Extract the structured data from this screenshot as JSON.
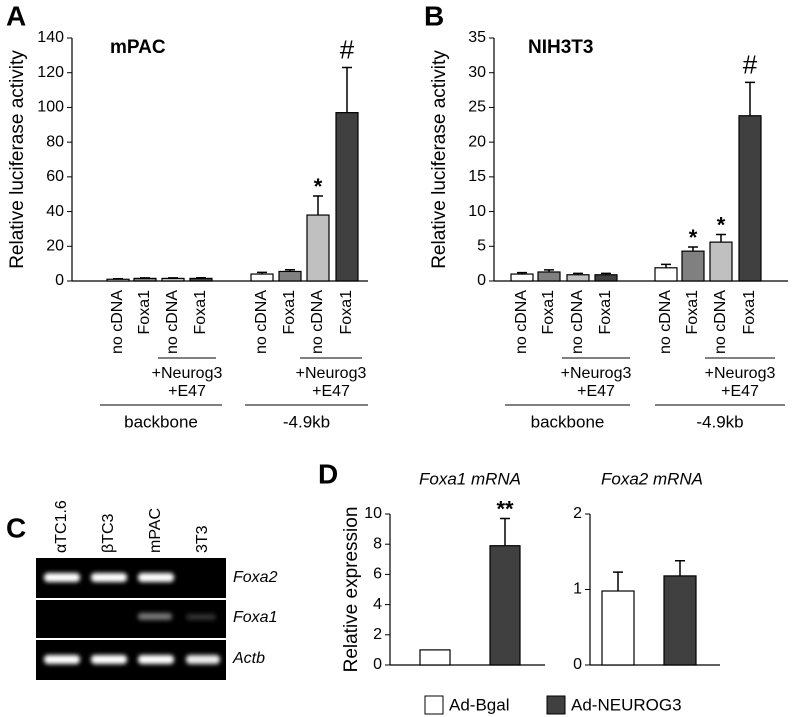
{
  "chart_data": [
    {
      "type": "bar",
      "panel": "A",
      "title": "mPAC",
      "ylabel": "Relative luciferase activity",
      "categories": [
        "no cDNA",
        "Foxa1",
        "no cDNA",
        "Foxa1",
        "no cDNA",
        "Foxa1",
        "no cDNA",
        "Foxa1"
      ],
      "values": [
        1,
        1.5,
        1.5,
        1.5,
        4,
        5.5,
        38,
        97
      ],
      "errors": [
        0.3,
        0.3,
        0.3,
        0.4,
        1,
        1,
        11,
        26
      ],
      "colors": [
        "#ffffff",
        "#808080",
        "#c0c0c0",
        "#404040",
        "#ffffff",
        "#808080",
        "#c0c0c0",
        "#404040"
      ],
      "annotations": [
        null,
        null,
        null,
        null,
        null,
        null,
        "*",
        "#"
      ],
      "groups": [
        {
          "label": "backbone",
          "subgroup": [
            "+Neurog3",
            "+E47"
          ]
        },
        {
          "label": "-4.9kb",
          "subgroup": [
            "+Neurog3",
            "+E47"
          ]
        }
      ],
      "ylim": [
        0,
        140
      ],
      "yticks": [
        0,
        20,
        40,
        60,
        80,
        100,
        120,
        140
      ]
    },
    {
      "type": "bar",
      "panel": "B",
      "title": "NIH3T3",
      "ylabel": "Relative luciferase activity",
      "categories": [
        "no cDNA",
        "Foxa1",
        "no cDNA",
        "Foxa1",
        "no cDNA",
        "Foxa1",
        "no cDNA",
        "Foxa1"
      ],
      "values": [
        1,
        1.3,
        0.9,
        0.9,
        1.9,
        4.3,
        5.6,
        23.8
      ],
      "errors": [
        0.2,
        0.3,
        0.2,
        0.2,
        0.5,
        0.6,
        1.1,
        4.8
      ],
      "colors": [
        "#ffffff",
        "#808080",
        "#c0c0c0",
        "#404040",
        "#ffffff",
        "#808080",
        "#c0c0c0",
        "#404040"
      ],
      "annotations": [
        null,
        null,
        null,
        null,
        null,
        "*",
        "*",
        "#"
      ],
      "groups": [
        {
          "label": "backbone",
          "subgroup": [
            "+Neurog3",
            "+E47"
          ]
        },
        {
          "label": "-4.9kb",
          "subgroup": [
            "+Neurog3",
            "+E47"
          ]
        }
      ],
      "ylim": [
        0,
        35
      ],
      "yticks": [
        0,
        5,
        10,
        15,
        20,
        25,
        30,
        35
      ]
    },
    {
      "type": "bar",
      "panel": "D",
      "title": "Foxa1 mRNA",
      "ylabel": "Relative expression",
      "categories": [
        null,
        null
      ],
      "values": [
        1,
        7.9
      ],
      "errors": [
        0,
        1.8
      ],
      "colors": [
        "#ffffff",
        "#404040"
      ],
      "annotations": [
        null,
        "**"
      ],
      "legend": [
        {
          "name": "Ad-Bgal",
          "color": "#ffffff"
        },
        {
          "name": "Ad-NEUROG3",
          "color": "#404040"
        }
      ],
      "ylim": [
        0,
        10
      ],
      "yticks": [
        0,
        2,
        4,
        6,
        8,
        10
      ]
    },
    {
      "type": "bar",
      "title": "Foxa2 mRNA",
      "categories": [
        null,
        null
      ],
      "values": [
        0.98,
        1.18
      ],
      "errors": [
        0.25,
        0.2
      ],
      "colors": [
        "#ffffff",
        "#404040"
      ],
      "ylim": [
        0,
        2
      ],
      "yticks": [
        0,
        1,
        2
      ]
    }
  ],
  "gel": {
    "panel": "C",
    "lanes": [
      "αTC1.6",
      "βTC3",
      "mPAC",
      "3T3"
    ],
    "rows": [
      "Foxa2",
      "Foxa1",
      "Actb"
    ]
  }
}
